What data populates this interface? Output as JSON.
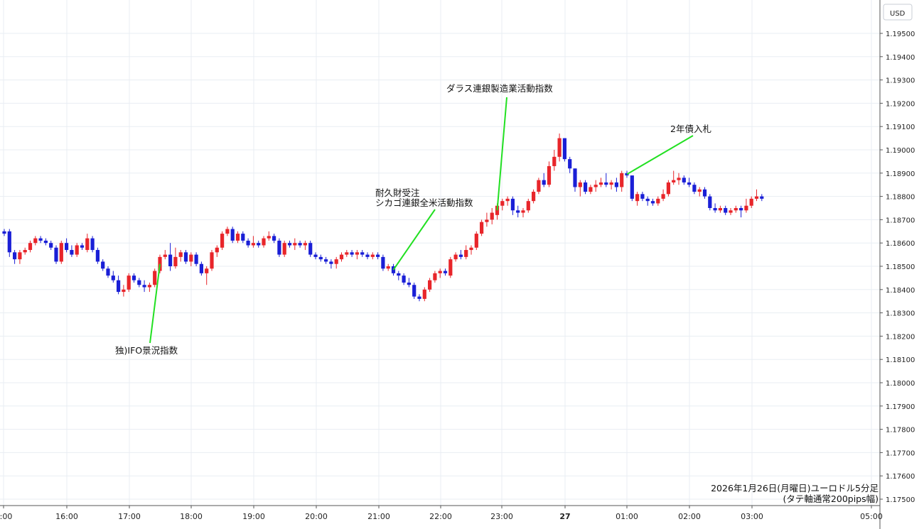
{
  "chart_data": {
    "type": "candlestick",
    "currency_label": "USD",
    "caption_lines": [
      "2026年1月26日(月曜日)ユーロドル5分足",
      "(タテ軸通常200pips幅)"
    ],
    "x_tick_labels": [
      "5:00",
      "16:00",
      "17:00",
      "18:00",
      "19:00",
      "20:00",
      "21:00",
      "22:00",
      "23:00",
      "27",
      "01:00",
      "02:00",
      "03:00",
      "05:00"
    ],
    "y_ticks": [
      "1.19500",
      "1.19400",
      "1.19300",
      "1.19200",
      "1.19100",
      "1.19000",
      "1.18900",
      "1.18800",
      "1.18700",
      "1.18600",
      "1.18500",
      "1.18400",
      "1.18300",
      "1.18200",
      "1.18100",
      "1.18000",
      "1.17900",
      "1.17800",
      "1.17700",
      "1.17600",
      "1.17500"
    ],
    "ylim": [
      1.175,
      1.1965
    ],
    "colors": {
      "up": "#e8252a",
      "down": "#1a1fd6",
      "leader": "#22e022",
      "grid": "#e8edf3"
    },
    "annotations": [
      {
        "lines": [
          "独)IFO景況指数"
        ],
        "candle": 30
      },
      {
        "lines": [
          "耐久財受注",
          "シカゴ連銀全米活動指数"
        ],
        "candle": 75
      },
      {
        "lines": [
          "ダラス連銀製造業活動指数"
        ],
        "candle": 95
      },
      {
        "lines": [
          "2年債入札"
        ],
        "candle": 120
      }
    ],
    "candles": [
      {
        "o": 1.1865,
        "h": 1.1866,
        "l": 1.1863,
        "c": 1.1864
      },
      {
        "o": 1.1865,
        "h": 1.1866,
        "l": 1.1854,
        "c": 1.1856
      },
      {
        "o": 1.1856,
        "h": 1.1857,
        "l": 1.1851,
        "c": 1.1853
      },
      {
        "o": 1.1853,
        "h": 1.1857,
        "l": 1.1851,
        "c": 1.1856
      },
      {
        "o": 1.1856,
        "h": 1.1858,
        "l": 1.1855,
        "c": 1.1857
      },
      {
        "o": 1.1857,
        "h": 1.1861,
        "l": 1.1856,
        "c": 1.186
      },
      {
        "o": 1.186,
        "h": 1.1863,
        "l": 1.1859,
        "c": 1.1862
      },
      {
        "o": 1.1862,
        "h": 1.1863,
        "l": 1.186,
        "c": 1.1861
      },
      {
        "o": 1.1861,
        "h": 1.1862,
        "l": 1.1859,
        "c": 1.186
      },
      {
        "o": 1.186,
        "h": 1.1861,
        "l": 1.1857,
        "c": 1.1858
      },
      {
        "o": 1.1858,
        "h": 1.1859,
        "l": 1.1851,
        "c": 1.1852
      },
      {
        "o": 1.1852,
        "h": 1.1861,
        "l": 1.1851,
        "c": 1.186
      },
      {
        "o": 1.186,
        "h": 1.1862,
        "l": 1.1856,
        "c": 1.1857
      },
      {
        "o": 1.1857,
        "h": 1.1859,
        "l": 1.1854,
        "c": 1.1855
      },
      {
        "o": 1.1855,
        "h": 1.186,
        "l": 1.1854,
        "c": 1.1859
      },
      {
        "o": 1.1859,
        "h": 1.186,
        "l": 1.1857,
        "c": 1.1858
      },
      {
        "o": 1.1857,
        "h": 1.1864,
        "l": 1.1856,
        "c": 1.1862
      },
      {
        "o": 1.1862,
        "h": 1.1863,
        "l": 1.1856,
        "c": 1.1857
      },
      {
        "o": 1.1857,
        "h": 1.1858,
        "l": 1.1851,
        "c": 1.1852
      },
      {
        "o": 1.1852,
        "h": 1.1853,
        "l": 1.1848,
        "c": 1.1849
      },
      {
        "o": 1.1849,
        "h": 1.185,
        "l": 1.1845,
        "c": 1.1846
      },
      {
        "o": 1.1846,
        "h": 1.1848,
        "l": 1.1843,
        "c": 1.1844
      },
      {
        "o": 1.1844,
        "h": 1.1846,
        "l": 1.1838,
        "c": 1.1839
      },
      {
        "o": 1.1839,
        "h": 1.1842,
        "l": 1.1837,
        "c": 1.184
      },
      {
        "o": 1.184,
        "h": 1.1847,
        "l": 1.1839,
        "c": 1.1846
      },
      {
        "o": 1.1846,
        "h": 1.1847,
        "l": 1.1843,
        "c": 1.1844
      },
      {
        "o": 1.1844,
        "h": 1.1845,
        "l": 1.1841,
        "c": 1.1842
      },
      {
        "o": 1.1842,
        "h": 1.1844,
        "l": 1.1839,
        "c": 1.1841
      },
      {
        "o": 1.1841,
        "h": 1.1843,
        "l": 1.1839,
        "c": 1.1842
      },
      {
        "o": 1.1842,
        "h": 1.1849,
        "l": 1.1841,
        "c": 1.1848
      },
      {
        "o": 1.1848,
        "h": 1.1855,
        "l": 1.1847,
        "c": 1.1854
      },
      {
        "o": 1.1854,
        "h": 1.1857,
        "l": 1.1853,
        "c": 1.1855
      },
      {
        "o": 1.1855,
        "h": 1.186,
        "l": 1.1848,
        "c": 1.185
      },
      {
        "o": 1.185,
        "h": 1.1858,
        "l": 1.1849,
        "c": 1.1854
      },
      {
        "o": 1.1854,
        "h": 1.1857,
        "l": 1.1852,
        "c": 1.1856
      },
      {
        "o": 1.1856,
        "h": 1.1857,
        "l": 1.1851,
        "c": 1.1852
      },
      {
        "o": 1.1852,
        "h": 1.1856,
        "l": 1.185,
        "c": 1.1855
      },
      {
        "o": 1.1855,
        "h": 1.1856,
        "l": 1.185,
        "c": 1.1851
      },
      {
        "o": 1.1851,
        "h": 1.1852,
        "l": 1.1846,
        "c": 1.1847
      },
      {
        "o": 1.1847,
        "h": 1.185,
        "l": 1.1842,
        "c": 1.1849
      },
      {
        "o": 1.1849,
        "h": 1.1857,
        "l": 1.1848,
        "c": 1.1856
      },
      {
        "o": 1.1856,
        "h": 1.1859,
        "l": 1.1854,
        "c": 1.1858
      },
      {
        "o": 1.1858,
        "h": 1.1865,
        "l": 1.1857,
        "c": 1.1864
      },
      {
        "o": 1.1864,
        "h": 1.1867,
        "l": 1.1863,
        "c": 1.1866
      },
      {
        "o": 1.1866,
        "h": 1.1867,
        "l": 1.186,
        "c": 1.1861
      },
      {
        "o": 1.1861,
        "h": 1.1865,
        "l": 1.186,
        "c": 1.1864
      },
      {
        "o": 1.1864,
        "h": 1.1865,
        "l": 1.186,
        "c": 1.1861
      },
      {
        "o": 1.1861,
        "h": 1.1862,
        "l": 1.1858,
        "c": 1.1859
      },
      {
        "o": 1.1859,
        "h": 1.1863,
        "l": 1.1858,
        "c": 1.186
      },
      {
        "o": 1.186,
        "h": 1.1861,
        "l": 1.1858,
        "c": 1.1859
      },
      {
        "o": 1.1859,
        "h": 1.1863,
        "l": 1.1858,
        "c": 1.1862
      },
      {
        "o": 1.1862,
        "h": 1.1865,
        "l": 1.1861,
        "c": 1.1863
      },
      {
        "o": 1.1863,
        "h": 1.1864,
        "l": 1.186,
        "c": 1.1861
      },
      {
        "o": 1.1861,
        "h": 1.1862,
        "l": 1.1854,
        "c": 1.1855
      },
      {
        "o": 1.1855,
        "h": 1.1861,
        "l": 1.1854,
        "c": 1.186
      },
      {
        "o": 1.186,
        "h": 1.1861,
        "l": 1.1858,
        "c": 1.1859
      },
      {
        "o": 1.1859,
        "h": 1.1862,
        "l": 1.1857,
        "c": 1.186
      },
      {
        "o": 1.186,
        "h": 1.1861,
        "l": 1.1858,
        "c": 1.1859
      },
      {
        "o": 1.1859,
        "h": 1.1861,
        "l": 1.1857,
        "c": 1.186
      },
      {
        "o": 1.186,
        "h": 1.1861,
        "l": 1.1854,
        "c": 1.1855
      },
      {
        "o": 1.1855,
        "h": 1.1856,
        "l": 1.1853,
        "c": 1.1854
      },
      {
        "o": 1.1854,
        "h": 1.1855,
        "l": 1.1852,
        "c": 1.1853
      },
      {
        "o": 1.1853,
        "h": 1.1854,
        "l": 1.1851,
        "c": 1.1852
      },
      {
        "o": 1.1852,
        "h": 1.1853,
        "l": 1.1849,
        "c": 1.1851
      },
      {
        "o": 1.1851,
        "h": 1.1854,
        "l": 1.1849,
        "c": 1.1853
      },
      {
        "o": 1.1853,
        "h": 1.1856,
        "l": 1.1852,
        "c": 1.1855
      },
      {
        "o": 1.1855,
        "h": 1.1857,
        "l": 1.1854,
        "c": 1.1856
      },
      {
        "o": 1.1856,
        "h": 1.1857,
        "l": 1.1854,
        "c": 1.1855
      },
      {
        "o": 1.1855,
        "h": 1.1857,
        "l": 1.1853,
        "c": 1.1856
      },
      {
        "o": 1.1856,
        "h": 1.1857,
        "l": 1.1854,
        "c": 1.1855
      },
      {
        "o": 1.1855,
        "h": 1.1856,
        "l": 1.1853,
        "c": 1.1854
      },
      {
        "o": 1.1854,
        "h": 1.1856,
        "l": 1.1853,
        "c": 1.1855
      },
      {
        "o": 1.1855,
        "h": 1.1856,
        "l": 1.1853,
        "c": 1.1854
      },
      {
        "o": 1.1854,
        "h": 1.1855,
        "l": 1.1848,
        "c": 1.1849
      },
      {
        "o": 1.1849,
        "h": 1.1851,
        "l": 1.1848,
        "c": 1.185
      },
      {
        "o": 1.185,
        "h": 1.1851,
        "l": 1.1846,
        "c": 1.1847
      },
      {
        "o": 1.1847,
        "h": 1.1848,
        "l": 1.1844,
        "c": 1.1846
      },
      {
        "o": 1.1846,
        "h": 1.1847,
        "l": 1.1842,
        "c": 1.1843
      },
      {
        "o": 1.1843,
        "h": 1.1845,
        "l": 1.1841,
        "c": 1.1842
      },
      {
        "o": 1.1842,
        "h": 1.1843,
        "l": 1.1836,
        "c": 1.1837
      },
      {
        "o": 1.1837,
        "h": 1.1838,
        "l": 1.1835,
        "c": 1.1836
      },
      {
        "o": 1.1836,
        "h": 1.1841,
        "l": 1.1835,
        "c": 1.184
      },
      {
        "o": 1.184,
        "h": 1.1845,
        "l": 1.1839,
        "c": 1.1844
      },
      {
        "o": 1.1844,
        "h": 1.1848,
        "l": 1.1843,
        "c": 1.1847
      },
      {
        "o": 1.1847,
        "h": 1.1849,
        "l": 1.1845,
        "c": 1.1848
      },
      {
        "o": 1.1848,
        "h": 1.1849,
        "l": 1.1846,
        "c": 1.1847
      },
      {
        "o": 1.1846,
        "h": 1.1854,
        "l": 1.1845,
        "c": 1.1853
      },
      {
        "o": 1.1853,
        "h": 1.1856,
        "l": 1.1852,
        "c": 1.1855
      },
      {
        "o": 1.1855,
        "h": 1.1857,
        "l": 1.1853,
        "c": 1.1854
      },
      {
        "o": 1.1854,
        "h": 1.1859,
        "l": 1.1853,
        "c": 1.1857
      },
      {
        "o": 1.1857,
        "h": 1.1859,
        "l": 1.1855,
        "c": 1.1858
      },
      {
        "o": 1.1858,
        "h": 1.1865,
        "l": 1.1857,
        "c": 1.1864
      },
      {
        "o": 1.1864,
        "h": 1.187,
        "l": 1.1863,
        "c": 1.1869
      },
      {
        "o": 1.1869,
        "h": 1.1873,
        "l": 1.1867,
        "c": 1.187
      },
      {
        "o": 1.187,
        "h": 1.1875,
        "l": 1.1868,
        "c": 1.1873
      },
      {
        "o": 1.1872,
        "h": 1.1877,
        "l": 1.187,
        "c": 1.1876
      },
      {
        "o": 1.1876,
        "h": 1.1879,
        "l": 1.1874,
        "c": 1.1878
      },
      {
        "o": 1.1878,
        "h": 1.188,
        "l": 1.1876,
        "c": 1.1879
      },
      {
        "o": 1.1879,
        "h": 1.188,
        "l": 1.1872,
        "c": 1.1874
      },
      {
        "o": 1.1874,
        "h": 1.1876,
        "l": 1.1871,
        "c": 1.1873
      },
      {
        "o": 1.1873,
        "h": 1.1875,
        "l": 1.1871,
        "c": 1.1874
      },
      {
        "o": 1.1874,
        "h": 1.1879,
        "l": 1.1873,
        "c": 1.1878
      },
      {
        "o": 1.1878,
        "h": 1.1883,
        "l": 1.1877,
        "c": 1.1882
      },
      {
        "o": 1.1882,
        "h": 1.1888,
        "l": 1.1881,
        "c": 1.1887
      },
      {
        "o": 1.1887,
        "h": 1.189,
        "l": 1.1884,
        "c": 1.1885
      },
      {
        "o": 1.1885,
        "h": 1.1895,
        "l": 1.1884,
        "c": 1.1893
      },
      {
        "o": 1.1893,
        "h": 1.19,
        "l": 1.1891,
        "c": 1.1897
      },
      {
        "o": 1.1897,
        "h": 1.1907,
        "l": 1.1895,
        "c": 1.1905
      },
      {
        "o": 1.1905,
        "h": 1.1905,
        "l": 1.1895,
        "c": 1.1896
      },
      {
        "o": 1.1896,
        "h": 1.1897,
        "l": 1.189,
        "c": 1.1892
      },
      {
        "o": 1.1892,
        "h": 1.1892,
        "l": 1.1882,
        "c": 1.1884
      },
      {
        "o": 1.1884,
        "h": 1.1887,
        "l": 1.188,
        "c": 1.1886
      },
      {
        "o": 1.1886,
        "h": 1.1887,
        "l": 1.1881,
        "c": 1.1882
      },
      {
        "o": 1.1882,
        "h": 1.1885,
        "l": 1.1881,
        "c": 1.1884
      },
      {
        "o": 1.1884,
        "h": 1.1887,
        "l": 1.1882,
        "c": 1.1885
      },
      {
        "o": 1.1885,
        "h": 1.1888,
        "l": 1.1884,
        "c": 1.1886
      },
      {
        "o": 1.1886,
        "h": 1.189,
        "l": 1.1884,
        "c": 1.1885
      },
      {
        "o": 1.1885,
        "h": 1.1887,
        "l": 1.1883,
        "c": 1.1886
      },
      {
        "o": 1.1886,
        "h": 1.1888,
        "l": 1.1882,
        "c": 1.1884
      },
      {
        "o": 1.1884,
        "h": 1.1891,
        "l": 1.1882,
        "c": 1.189
      },
      {
        "o": 1.189,
        "h": 1.1891,
        "l": 1.1888,
        "c": 1.1889
      },
      {
        "o": 1.1889,
        "h": 1.1889,
        "l": 1.1878,
        "c": 1.1879
      },
      {
        "o": 1.1878,
        "h": 1.1882,
        "l": 1.1876,
        "c": 1.1881
      },
      {
        "o": 1.1881,
        "h": 1.1882,
        "l": 1.1878,
        "c": 1.1879
      },
      {
        "o": 1.1879,
        "h": 1.188,
        "l": 1.1876,
        "c": 1.1878
      },
      {
        "o": 1.1878,
        "h": 1.1879,
        "l": 1.1876,
        "c": 1.1877
      },
      {
        "o": 1.1877,
        "h": 1.188,
        "l": 1.1876,
        "c": 1.1879
      },
      {
        "o": 1.1879,
        "h": 1.1883,
        "l": 1.1878,
        "c": 1.1881
      },
      {
        "o": 1.1881,
        "h": 1.1887,
        "l": 1.188,
        "c": 1.1886
      },
      {
        "o": 1.1886,
        "h": 1.1891,
        "l": 1.1885,
        "c": 1.1887
      },
      {
        "o": 1.1887,
        "h": 1.189,
        "l": 1.1885,
        "c": 1.1888
      },
      {
        "o": 1.1888,
        "h": 1.1889,
        "l": 1.1885,
        "c": 1.1886
      },
      {
        "o": 1.1886,
        "h": 1.1888,
        "l": 1.1884,
        "c": 1.1885
      },
      {
        "o": 1.1885,
        "h": 1.1886,
        "l": 1.1881,
        "c": 1.1882
      },
      {
        "o": 1.1882,
        "h": 1.1884,
        "l": 1.188,
        "c": 1.1883
      },
      {
        "o": 1.1883,
        "h": 1.1884,
        "l": 1.1879,
        "c": 1.188
      },
      {
        "o": 1.188,
        "h": 1.1881,
        "l": 1.1874,
        "c": 1.1875
      },
      {
        "o": 1.1875,
        "h": 1.1877,
        "l": 1.1873,
        "c": 1.1874
      },
      {
        "o": 1.1874,
        "h": 1.1876,
        "l": 1.1873,
        "c": 1.1875
      },
      {
        "o": 1.1875,
        "h": 1.1876,
        "l": 1.1872,
        "c": 1.1873
      },
      {
        "o": 1.1873,
        "h": 1.1875,
        "l": 1.1872,
        "c": 1.1874
      },
      {
        "o": 1.1874,
        "h": 1.1876,
        "l": 1.1873,
        "c": 1.1875
      },
      {
        "o": 1.1875,
        "h": 1.1876,
        "l": 1.1871,
        "c": 1.1874
      },
      {
        "o": 1.1874,
        "h": 1.1879,
        "l": 1.1873,
        "c": 1.1876
      },
      {
        "o": 1.1876,
        "h": 1.188,
        "l": 1.1875,
        "c": 1.1879
      },
      {
        "o": 1.1879,
        "h": 1.1883,
        "l": 1.1878,
        "c": 1.188
      },
      {
        "o": 1.188,
        "h": 1.1881,
        "l": 1.1878,
        "c": 1.1879
      }
    ]
  }
}
